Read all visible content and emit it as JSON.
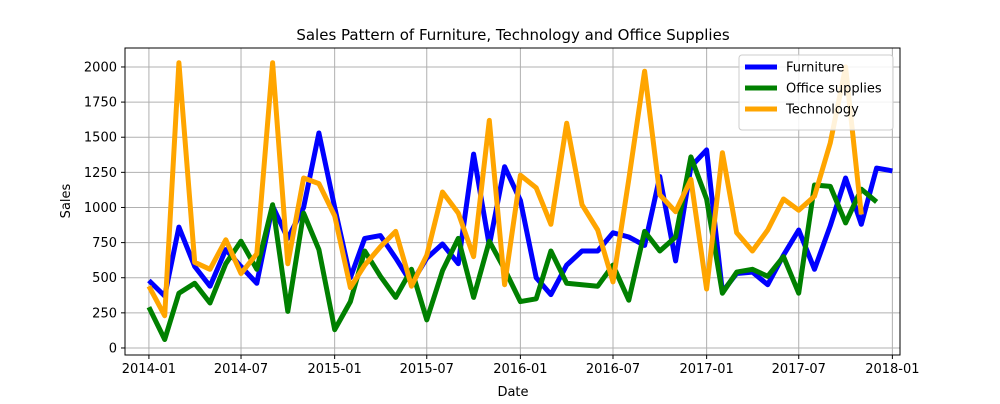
{
  "chart_data": {
    "type": "line",
    "title": "Sales Pattern of Furniture, Technology and Office Supplies",
    "xlabel": "Date",
    "ylabel": "Sales",
    "x_start": "2014-01",
    "x_step": "1 month",
    "xlim": [
      "2013-11-15",
      "2018-01-16"
    ],
    "ylim": [
      -50,
      2135
    ],
    "x_ticks": [
      {
        "date": "2014-01-01",
        "label": "2014-01"
      },
      {
        "date": "2014-07-01",
        "label": "2014-07"
      },
      {
        "date": "2015-01-01",
        "label": "2015-01"
      },
      {
        "date": "2015-07-01",
        "label": "2015-07"
      },
      {
        "date": "2016-01-01",
        "label": "2016-01"
      },
      {
        "date": "2016-07-01",
        "label": "2016-07"
      },
      {
        "date": "2017-01-01",
        "label": "2017-01"
      },
      {
        "date": "2017-07-01",
        "label": "2017-07"
      },
      {
        "date": "2018-01-01",
        "label": "2018-01"
      }
    ],
    "y_ticks": [
      {
        "value": 0,
        "label": "0"
      },
      {
        "value": 250,
        "label": "250"
      },
      {
        "value": 500,
        "label": "500"
      },
      {
        "value": 750,
        "label": "750"
      },
      {
        "value": 1000,
        "label": "1000"
      },
      {
        "value": 1250,
        "label": "1250"
      },
      {
        "value": 1500,
        "label": "1500"
      },
      {
        "value": 1750,
        "label": "1750"
      },
      {
        "value": 2000,
        "label": "2000"
      }
    ],
    "grid": true,
    "legend_position": "top-right",
    "series": [
      {
        "name": "Furniture",
        "color": "#0000ff",
        "values": [
          480,
          370,
          860,
          580,
          440,
          700,
          580,
          460,
          1010,
          780,
          1000,
          1530,
          1000,
          500,
          780,
          800,
          640,
          460,
          640,
          740,
          600,
          1380,
          730,
          1290,
          1050,
          500,
          380,
          590,
          690,
          690,
          820,
          790,
          730,
          1220,
          620,
          1290,
          1410,
          400,
          530,
          540,
          450,
          660,
          840,
          560,
          870,
          1210,
          880,
          1280,
          1260
        ]
      },
      {
        "name": "Office supplies",
        "color": "#008000",
        "values": [
          290,
          60,
          390,
          460,
          320,
          600,
          760,
          560,
          1020,
          260,
          960,
          700,
          130,
          330,
          690,
          510,
          360,
          560,
          200,
          550,
          780,
          360,
          760,
          560,
          330,
          350,
          690,
          460,
          450,
          440,
          590,
          340,
          830,
          690,
          790,
          1360,
          1060,
          390,
          540,
          560,
          510,
          650,
          390,
          1160,
          1150,
          890,
          1130,
          1040
        ]
      },
      {
        "name": "Technology",
        "color": "#ffa500",
        "values": [
          440,
          230,
          2030,
          610,
          560,
          770,
          530,
          670,
          2030,
          600,
          1210,
          1170,
          940,
          430,
          590,
          720,
          830,
          440,
          660,
          1110,
          960,
          650,
          1620,
          450,
          1230,
          1140,
          880,
          1600,
          1020,
          840,
          470,
          1200,
          1970,
          1090,
          970,
          1200,
          420,
          1390,
          820,
          690,
          840,
          1060,
          980,
          1080,
          1460,
          2000,
          950
        ]
      }
    ]
  }
}
